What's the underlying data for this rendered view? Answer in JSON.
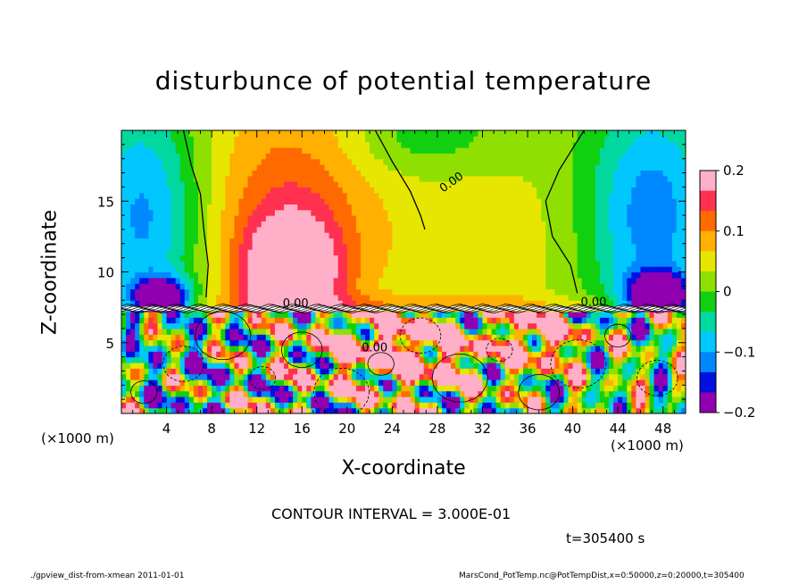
{
  "chart_data": {
    "type": "heatmap",
    "title": "disturbunce of potential temperature",
    "xlabel": "X-coordinate",
    "ylabel": "Z-coordinate",
    "x_unit_label": "(×1000 m)",
    "xlim": [
      0,
      50
    ],
    "ylim": [
      0,
      20
    ],
    "x_ticks": [
      4,
      8,
      12,
      16,
      20,
      24,
      28,
      32,
      36,
      40,
      44,
      48
    ],
    "y_ticks": [
      5,
      10,
      15
    ],
    "colorbar": {
      "range": [
        -0.2,
        0.2
      ],
      "tick_values": [
        0.2,
        0.1,
        0,
        -0.1,
        -0.2
      ],
      "tick_labels": [
        "0.2",
        "0.1",
        "0",
        "−0.1",
        "−0.2"
      ],
      "colors": [
        "#ffb0c8",
        "#ff3050",
        "#ff6a00",
        "#ffb000",
        "#e6e600",
        "#8fe000",
        "#10d010",
        "#00d8a0",
        "#00c8ff",
        "#0088ff",
        "#0010e0",
        "#9000b0"
      ]
    },
    "contour_labels": [
      "0.00",
      "0.00",
      "0.00",
      "0.00"
    ],
    "contour_interval": "CONTOUR INTERVAL = 3.000E-01",
    "time": "t=305400 s"
  },
  "footer": {
    "left": "./gpview_dist-from-xmean  2011-01-01",
    "right": "MarsCond_PotTemp.nc@PotTempDist,x=0:50000,z=0:20000,t=305400"
  }
}
